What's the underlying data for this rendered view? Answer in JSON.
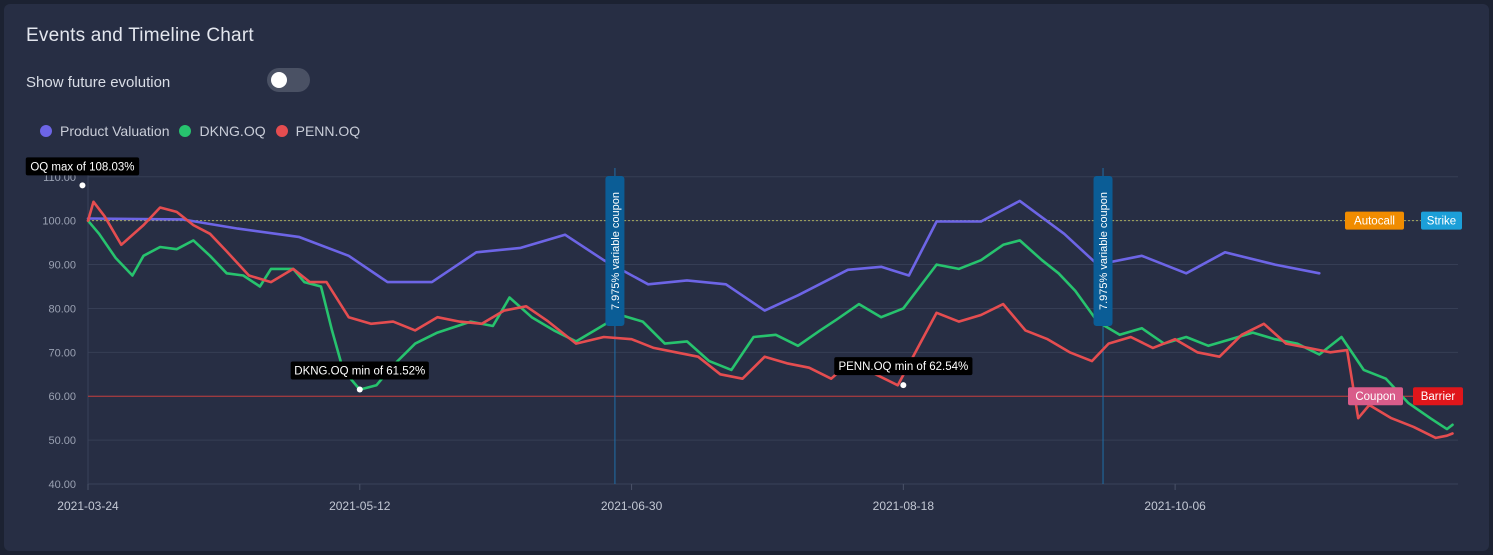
{
  "header": {
    "title": "Events and Timeline Chart"
  },
  "controls": {
    "toggle_label": "Show future evolution",
    "toggle_on": false
  },
  "legend": [
    {
      "label": "Product Valuation",
      "color": "#6d65e6"
    },
    {
      "label": "DKNG.OQ",
      "color": "#27c36e"
    },
    {
      "label": "PENN.OQ",
      "color": "#e54d50"
    }
  ],
  "chart_data": {
    "type": "line",
    "title": "Events and Timeline Chart",
    "xlabel": "",
    "ylabel": "",
    "x_start": "2021-03-24",
    "x_end": "2021-11-26",
    "ylim": [
      40,
      112
    ],
    "yticks": [
      40,
      50,
      60,
      70,
      80,
      90,
      100,
      110
    ],
    "ytick_labels": [
      "40.00",
      "50.00",
      "60.00",
      "70.00",
      "80.00",
      "90.00",
      "100.00",
      "110.00"
    ],
    "xticks": [
      "2021-03-24",
      "2021-05-12",
      "2021-06-30",
      "2021-08-18",
      "2021-10-06"
    ],
    "grid": true,
    "legend_position": "top-left",
    "series": [
      {
        "name": "Product Valuation",
        "color": "#6d65e6",
        "points": [
          [
            "2021-03-24",
            100.5
          ],
          [
            "2021-04-10",
            100.3
          ],
          [
            "2021-04-20",
            98.2
          ],
          [
            "2021-05-01",
            96.3
          ],
          [
            "2021-05-10",
            92.0
          ],
          [
            "2021-05-17",
            86.0
          ],
          [
            "2021-05-25",
            86.0
          ],
          [
            "2021-06-02",
            92.8
          ],
          [
            "2021-06-10",
            93.8
          ],
          [
            "2021-06-18",
            96.8
          ],
          [
            "2021-06-25",
            91.0
          ],
          [
            "2021-07-03",
            85.5
          ],
          [
            "2021-07-10",
            86.4
          ],
          [
            "2021-07-17",
            85.5
          ],
          [
            "2021-07-24",
            79.5
          ],
          [
            "2021-07-30",
            83.0
          ],
          [
            "2021-08-08",
            88.8
          ],
          [
            "2021-08-14",
            89.5
          ],
          [
            "2021-08-19",
            87.5
          ],
          [
            "2021-08-24",
            99.8
          ],
          [
            "2021-09-01",
            99.8
          ],
          [
            "2021-09-08",
            104.5
          ],
          [
            "2021-09-16",
            97.0
          ],
          [
            "2021-09-22",
            90.0
          ],
          [
            "2021-09-30",
            92.0
          ],
          [
            "2021-10-08",
            88.0
          ],
          [
            "2021-10-15",
            92.8
          ],
          [
            "2021-10-24",
            90.0
          ],
          [
            "2021-11-01",
            88.0
          ]
        ]
      },
      {
        "name": "DKNG.OQ",
        "color": "#27c36e",
        "points": [
          [
            "2021-03-24",
            100.0
          ],
          [
            "2021-03-26",
            97.0
          ],
          [
            "2021-03-29",
            91.5
          ],
          [
            "2021-04-01",
            87.5
          ],
          [
            "2021-04-03",
            92.0
          ],
          [
            "2021-04-06",
            94.0
          ],
          [
            "2021-04-09",
            93.5
          ],
          [
            "2021-04-12",
            95.5
          ],
          [
            "2021-04-15",
            92.0
          ],
          [
            "2021-04-18",
            88.0
          ],
          [
            "2021-04-21",
            87.5
          ],
          [
            "2021-04-24",
            85.0
          ],
          [
            "2021-04-26",
            89.0
          ],
          [
            "2021-04-30",
            89.0
          ],
          [
            "2021-05-02",
            86.0
          ],
          [
            "2021-05-05",
            85.0
          ],
          [
            "2021-05-07",
            75.0
          ],
          [
            "2021-05-09",
            66.0
          ],
          [
            "2021-05-12",
            61.5
          ],
          [
            "2021-05-15",
            62.5
          ],
          [
            "2021-05-18",
            67.0
          ],
          [
            "2021-05-22",
            72.0
          ],
          [
            "2021-05-26",
            74.5
          ],
          [
            "2021-06-01",
            77.0
          ],
          [
            "2021-06-05",
            76.0
          ],
          [
            "2021-06-08",
            82.5
          ],
          [
            "2021-06-12",
            78.0
          ],
          [
            "2021-06-16",
            75.0
          ],
          [
            "2021-06-20",
            72.5
          ],
          [
            "2021-06-24",
            75.5
          ],
          [
            "2021-06-28",
            78.5
          ],
          [
            "2021-07-02",
            77.0
          ],
          [
            "2021-07-06",
            72.0
          ],
          [
            "2021-07-10",
            72.5
          ],
          [
            "2021-07-14",
            68.0
          ],
          [
            "2021-07-18",
            66.0
          ],
          [
            "2021-07-22",
            73.5
          ],
          [
            "2021-07-26",
            74.0
          ],
          [
            "2021-07-30",
            71.5
          ],
          [
            "2021-08-03",
            75.0
          ],
          [
            "2021-08-06",
            77.5
          ],
          [
            "2021-08-10",
            81.0
          ],
          [
            "2021-08-14",
            78.0
          ],
          [
            "2021-08-18",
            80.0
          ],
          [
            "2021-08-21",
            85.0
          ],
          [
            "2021-08-24",
            90.0
          ],
          [
            "2021-08-28",
            89.0
          ],
          [
            "2021-09-01",
            91.0
          ],
          [
            "2021-09-05",
            94.5
          ],
          [
            "2021-09-08",
            95.5
          ],
          [
            "2021-09-12",
            91.0
          ],
          [
            "2021-09-15",
            88.0
          ],
          [
            "2021-09-18",
            84.0
          ],
          [
            "2021-09-22",
            77.0
          ],
          [
            "2021-09-26",
            74.0
          ],
          [
            "2021-09-30",
            75.5
          ],
          [
            "2021-10-04",
            72.0
          ],
          [
            "2021-10-08",
            73.5
          ],
          [
            "2021-10-12",
            71.5
          ],
          [
            "2021-10-16",
            73.0
          ],
          [
            "2021-10-20",
            74.5
          ],
          [
            "2021-10-24",
            73.0
          ],
          [
            "2021-10-28",
            72.0
          ],
          [
            "2021-11-01",
            69.5
          ],
          [
            "2021-11-05",
            73.5
          ],
          [
            "2021-11-09",
            66.0
          ],
          [
            "2021-11-13",
            64.0
          ],
          [
            "2021-11-17",
            58.5
          ],
          [
            "2021-11-21",
            55.0
          ],
          [
            "2021-11-24",
            52.5
          ],
          [
            "2021-11-25",
            53.5
          ]
        ]
      },
      {
        "name": "PENN.OQ",
        "color": "#e54d50",
        "points": [
          [
            "2021-03-24",
            100.0
          ],
          [
            "2021-03-25",
            104.3
          ],
          [
            "2021-03-27",
            101.0
          ],
          [
            "2021-03-30",
            94.5
          ],
          [
            "2021-04-03",
            99.0
          ],
          [
            "2021-04-06",
            103.0
          ],
          [
            "2021-04-09",
            102.0
          ],
          [
            "2021-04-12",
            99.0
          ],
          [
            "2021-04-15",
            97.0
          ],
          [
            "2021-04-18",
            93.0
          ],
          [
            "2021-04-22",
            87.5
          ],
          [
            "2021-04-26",
            86.0
          ],
          [
            "2021-04-30",
            89.0
          ],
          [
            "2021-05-03",
            86.0
          ],
          [
            "2021-05-06",
            86.0
          ],
          [
            "2021-05-10",
            78.0
          ],
          [
            "2021-05-14",
            76.5
          ],
          [
            "2021-05-18",
            77.0
          ],
          [
            "2021-05-22",
            75.0
          ],
          [
            "2021-05-26",
            78.0
          ],
          [
            "2021-05-30",
            77.0
          ],
          [
            "2021-06-03",
            76.5
          ],
          [
            "2021-06-07",
            79.5
          ],
          [
            "2021-06-11",
            80.5
          ],
          [
            "2021-06-15",
            77.0
          ],
          [
            "2021-06-20",
            72.0
          ],
          [
            "2021-06-25",
            73.5
          ],
          [
            "2021-06-30",
            73.0
          ],
          [
            "2021-07-04",
            71.0
          ],
          [
            "2021-07-08",
            70.0
          ],
          [
            "2021-07-12",
            69.0
          ],
          [
            "2021-07-16",
            65.0
          ],
          [
            "2021-07-20",
            64.0
          ],
          [
            "2021-07-24",
            69.0
          ],
          [
            "2021-07-28",
            67.5
          ],
          [
            "2021-08-01",
            66.5
          ],
          [
            "2021-08-05",
            64.0
          ],
          [
            "2021-08-09",
            68.5
          ],
          [
            "2021-08-13",
            65.0
          ],
          [
            "2021-08-17",
            62.5
          ],
          [
            "2021-08-21",
            72.0
          ],
          [
            "2021-08-24",
            79.0
          ],
          [
            "2021-08-28",
            77.0
          ],
          [
            "2021-09-01",
            78.5
          ],
          [
            "2021-09-05",
            81.0
          ],
          [
            "2021-09-09",
            75.0
          ],
          [
            "2021-09-13",
            73.0
          ],
          [
            "2021-09-17",
            70.0
          ],
          [
            "2021-09-21",
            68.0
          ],
          [
            "2021-09-24",
            72.0
          ],
          [
            "2021-09-28",
            73.5
          ],
          [
            "2021-10-02",
            71.0
          ],
          [
            "2021-10-06",
            73.0
          ],
          [
            "2021-10-10",
            70.0
          ],
          [
            "2021-10-14",
            69.0
          ],
          [
            "2021-10-18",
            74.0
          ],
          [
            "2021-10-22",
            76.5
          ],
          [
            "2021-10-26",
            72.0
          ],
          [
            "2021-10-30",
            71.0
          ],
          [
            "2021-11-03",
            70.0
          ],
          [
            "2021-11-06",
            70.5
          ],
          [
            "2021-11-08",
            55.0
          ],
          [
            "2021-11-10",
            58.0
          ],
          [
            "2021-11-14",
            55.0
          ],
          [
            "2021-11-18",
            53.0
          ],
          [
            "2021-11-22",
            50.5
          ],
          [
            "2021-11-24",
            51.0
          ],
          [
            "2021-11-25",
            51.5
          ]
        ]
      }
    ],
    "reference_lines": [
      {
        "name": "Autocall",
        "value": 100,
        "color": "#f08c00",
        "line_color": "#a8ab5e",
        "dash": true
      },
      {
        "name": "Strike",
        "value": 100,
        "color": "#1c9fd8"
      },
      {
        "name": "Coupon",
        "value": 60,
        "color": "#d95c8a"
      },
      {
        "name": "Barrier",
        "value": 60,
        "color": "#e0161b",
        "line_color": "#c23b3b"
      }
    ],
    "events": [
      {
        "date": "2021-06-27",
        "label": "7.975% variable coupon"
      },
      {
        "date": "2021-09-23",
        "label": "7.975% variable coupon"
      }
    ],
    "annotations": [
      {
        "text": "OQ max of 108.03%",
        "date": "2021-03-23",
        "value": 108.03
      },
      {
        "text": "DKNG.OQ min of 61.52%",
        "date": "2021-05-12",
        "value": 61.52
      },
      {
        "text": "PENN.OQ min of 62.54%",
        "date": "2021-08-18",
        "value": 62.54
      }
    ]
  }
}
